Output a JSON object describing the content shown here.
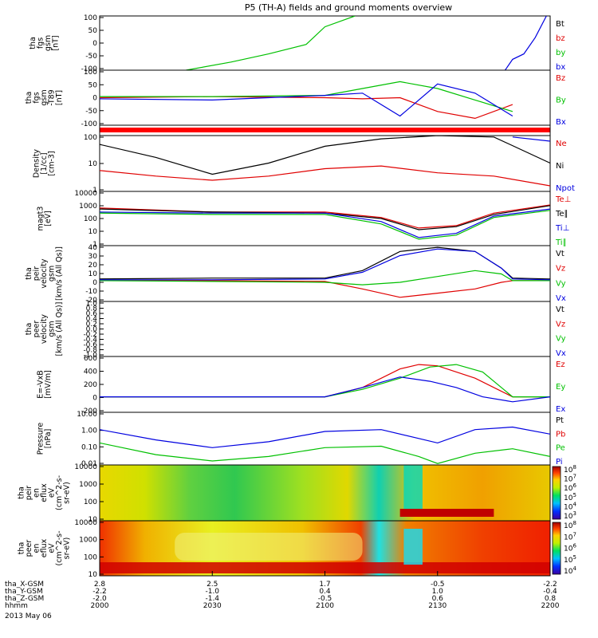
{
  "title": "P5 (TH-A) fields and ground moments overview",
  "date": "2013 May 06",
  "panels": [
    {
      "id": "fgs",
      "ylabel": [
        "tha",
        "fgs",
        "gsm",
        "[nT]"
      ],
      "yticks": [
        "100",
        "50",
        "0",
        "-50",
        "-100"
      ],
      "legend": [
        {
          "text": "Bt",
          "color": "#000000"
        },
        {
          "text": "bz",
          "color": "#e00000"
        },
        {
          "text": "by",
          "color": "#00c000"
        },
        {
          "text": "bx",
          "color": "#0000e0"
        }
      ]
    },
    {
      "id": "fgs-t89",
      "ylabel": [
        "tha",
        "fgs",
        "gsm",
        "-T89",
        "[nT]"
      ],
      "yticks": [
        "100",
        "50",
        "0",
        "-50",
        "-100"
      ],
      "legend": [
        {
          "text": "Bz",
          "color": "#e00000"
        },
        {
          "text": "By",
          "color": "#00c000"
        },
        {
          "text": "Bx",
          "color": "#0000e0"
        }
      ]
    },
    {
      "id": "mode-bar",
      "ylabel": [],
      "yticks": [],
      "legend": []
    },
    {
      "id": "density",
      "ylabel": [
        "Density",
        "[1/cc]",
        "[cm-3]"
      ],
      "yticks": [
        "100",
        "10",
        "1"
      ],
      "legend": [
        {
          "text": "Ne",
          "color": "#e00000"
        },
        {
          "text": "Ni",
          "color": "#000000"
        },
        {
          "text": "Npot",
          "color": "#0000e0"
        }
      ]
    },
    {
      "id": "temp",
      "ylabel": [
        "magt3",
        "[eV]"
      ],
      "yticks": [
        "10000",
        "1000",
        "100",
        "10",
        "1"
      ],
      "legend": [
        {
          "text": "Te⊥",
          "color": "#e00000"
        },
        {
          "text": "Te∥",
          "color": "#000000"
        },
        {
          "text": "Ti⊥",
          "color": "#0000e0"
        },
        {
          "text": "Ti∥",
          "color": "#00c000"
        }
      ]
    },
    {
      "id": "peir-vel",
      "ylabel": [
        "tha",
        "peir",
        "velocity",
        "gsm",
        "[km/s (All Qs)]"
      ],
      "yticks": [
        "40",
        "30",
        "20",
        "10",
        "0",
        "-10",
        "-20"
      ],
      "legend": [
        {
          "text": "Vt",
          "color": "#000000"
        },
        {
          "text": "Vz",
          "color": "#e00000"
        },
        {
          "text": "Vy",
          "color": "#00c000"
        },
        {
          "text": "Vx",
          "color": "#0000e0"
        }
      ]
    },
    {
      "id": "peer-vel",
      "ylabel": [
        "tha",
        "peer",
        "velocity",
        "gsm",
        "[km/s (All Qs)]"
      ],
      "yticks": [
        "1.0",
        "0.8",
        "0.6",
        "0.4",
        "0.2",
        "0.0",
        "-0.2",
        "-0.4",
        "-0.6",
        "-0.8",
        "-1.0"
      ],
      "legend": [
        {
          "text": "Vt",
          "color": "#000000"
        },
        {
          "text": "Vz",
          "color": "#e00000"
        },
        {
          "text": "Vy",
          "color": "#00c000"
        },
        {
          "text": "Vx",
          "color": "#0000e0"
        }
      ]
    },
    {
      "id": "efield",
      "ylabel": [
        "E=-VxB",
        "[mV/m]"
      ],
      "yticks": [
        "600",
        "400",
        "200",
        "0",
        "-200"
      ],
      "legend": [
        {
          "text": "Ez",
          "color": "#e00000"
        },
        {
          "text": "Ey",
          "color": "#00c000"
        },
        {
          "text": "Ex",
          "color": "#0000e0"
        }
      ]
    },
    {
      "id": "pressure",
      "ylabel": [
        "Pressure",
        "[nPa]"
      ],
      "yticks": [
        "10.00",
        "1.00",
        "0.10",
        "0.01"
      ],
      "legend": [
        {
          "text": "Pt",
          "color": "#000000"
        },
        {
          "text": "Pb",
          "color": "#e00000"
        },
        {
          "text": "Pe",
          "color": "#00c000"
        },
        {
          "text": "Pi",
          "color": "#0000e0"
        }
      ]
    },
    {
      "id": "peir-spec",
      "ylabel": [
        "tha",
        "peir",
        "en",
        "eflux",
        "eV",
        "(cm^2-s-",
        "sr-eV)"
      ],
      "yticks": [
        "10000",
        "1000",
        "100",
        "10"
      ],
      "legend": []
    },
    {
      "id": "peer-spec",
      "ylabel": [
        "tha",
        "peer",
        "en",
        "eflux",
        "eV",
        "(cm^2-s-",
        "sr-eV)"
      ],
      "yticks": [
        "10000",
        "1000",
        "100",
        "10"
      ],
      "legend": []
    }
  ],
  "colorbars": [
    {
      "ticks": [
        "10^8",
        "10^7",
        "10^6",
        "10^5",
        "10^4",
        "10^3"
      ]
    },
    {
      "ticks": [
        "10^8",
        "10^7",
        "10^6",
        "10^5",
        "10^4"
      ]
    }
  ],
  "xaxis": {
    "rows": [
      {
        "label": "tha_X-GSM",
        "values": [
          "2.8",
          "2.5",
          "1.7",
          "-0.5",
          "-2.2"
        ]
      },
      {
        "label": "tha_Y-GSM",
        "values": [
          "-2.2",
          "-1.0",
          "0.4",
          "1.0",
          "-0.4"
        ]
      },
      {
        "label": "tha_Z-GSM",
        "values": [
          "-2.0",
          "-1.4",
          "-0.5",
          "0.6",
          "0.8"
        ]
      },
      {
        "label": "hhmm",
        "values": [
          "2000",
          "2030",
          "2100",
          "2130",
          "2200"
        ]
      }
    ]
  },
  "chart_data": {
    "type": "line",
    "title": "P5 (TH-A) fields and ground moments overview",
    "x_ticks": [
      "2000",
      "2030",
      "2100",
      "2130",
      "2200"
    ],
    "x_range": [
      "2000",
      "2200"
    ],
    "panels": [
      {
        "id": "fgs",
        "ylim": [
          -100,
          100
        ],
        "series": [
          {
            "name": "by",
            "color": "#00c000",
            "x": [
              2023,
              2035,
              2045,
              2055,
              2100,
              2108
            ],
            "y": [
              -100,
              -70,
              -40,
              -5,
              60,
              100
            ]
          },
          {
            "name": "bx",
            "color": "#0000e0",
            "x": [
              2148,
              2150,
              2153,
              2156,
              2159
            ],
            "y": [
              -100,
              -60,
              -40,
              20,
              100
            ]
          }
        ]
      },
      {
        "id": "fgs-t89",
        "ylim": [
          -120,
          120
        ],
        "series": [
          {
            "name": "Bz",
            "color": "#e00000",
            "x": [
              2000,
              2030,
              2100,
              2110,
              2120,
              2130,
              2140,
              2150
            ],
            "y": [
              0,
              5,
              0,
              -5,
              0,
              -60,
              -90,
              -30
            ]
          },
          {
            "name": "By",
            "color": "#00c000",
            "x": [
              2000,
              2030,
              2100,
              2110,
              2120,
              2130,
              2140,
              2150
            ],
            "y": [
              5,
              5,
              10,
              40,
              70,
              40,
              -10,
              -60
            ]
          },
          {
            "name": "Bx",
            "color": "#0000e0",
            "x": [
              2000,
              2030,
              2100,
              2110,
              2120,
              2130,
              2140,
              2150
            ],
            "y": [
              -5,
              -10,
              10,
              20,
              -80,
              60,
              20,
              -80
            ]
          }
        ]
      },
      {
        "id": "density",
        "ylim": [
          0.3,
          300
        ],
        "yscale": "log",
        "series": [
          {
            "name": "Ni",
            "color": "#000000",
            "x": [
              2000,
              2015,
              2030,
              2045,
              2100,
              2115,
              2130,
              2145,
              2200
            ],
            "y": [
              100,
              20,
              2.5,
              10,
              80,
              200,
              300,
              250,
              10
            ]
          },
          {
            "name": "Ne",
            "color": "#e00000",
            "x": [
              2000,
              2015,
              2030,
              2045,
              2100,
              2115,
              2130,
              2145,
              2200
            ],
            "y": [
              4,
              2,
              1.2,
              2,
              5,
              7,
              3,
              2,
              0.6
            ]
          },
          {
            "name": "Npot",
            "color": "#0000e0",
            "x": [
              2150,
              2160,
              2170,
              2180,
              2190,
              2200
            ],
            "y": [
              250,
              150,
              80,
              40,
              60,
              30
            ]
          }
        ]
      },
      {
        "id": "temp",
        "ylim": [
          1,
          10000
        ],
        "yscale": "log",
        "series": [
          {
            "name": "Te⊥",
            "color": "#e00000",
            "x": [
              2000,
              2030,
              2100,
              2115,
              2125,
              2135,
              2145,
              2200
            ],
            "y": [
              600,
              300,
              300,
              120,
              20,
              30,
              250,
              1000
            ]
          },
          {
            "name": "Te∥",
            "color": "#000000",
            "x": [
              2000,
              2030,
              2100,
              2115,
              2125,
              2135,
              2145,
              2200
            ],
            "y": [
              500,
              300,
              250,
              100,
              15,
              25,
              200,
              900
            ]
          },
          {
            "name": "Ti⊥",
            "color": "#0000e0",
            "x": [
              2000,
              2030,
              2100,
              2115,
              2125,
              2135,
              2145,
              2200
            ],
            "y": [
              300,
              250,
              250,
              60,
              4,
              8,
              150,
              500
            ]
          },
          {
            "name": "Ti∥",
            "color": "#00c000",
            "x": [
              2000,
              2030,
              2100,
              2115,
              2125,
              2135,
              2145,
              2200
            ],
            "y": [
              250,
              200,
              200,
              40,
              3,
              6,
              120,
              400
            ]
          }
        ]
      },
      {
        "id": "peir-vel",
        "ylim": [
          -25,
          42
        ],
        "series": [
          {
            "name": "Vt",
            "color": "#000000",
            "x": [
              2000,
              2030,
              2100,
              2110,
              2120,
              2130,
              2140,
              2147,
              2150,
              2200
            ],
            "y": [
              2,
              3,
              3,
              12,
              35,
              40,
              35,
              15,
              3,
              2
            ]
          },
          {
            "name": "Vz",
            "color": "#e00000",
            "x": [
              2000,
              2030,
              2100,
              2110,
              2120,
              2130,
              2140,
              2147,
              2150,
              2200
            ],
            "y": [
              0,
              0,
              -1,
              -10,
              -20,
              -15,
              -10,
              -2,
              0,
              0
            ]
          },
          {
            "name": "Vy",
            "color": "#00c000",
            "x": [
              2000,
              2030,
              2100,
              2110,
              2120,
              2130,
              2140,
              2147,
              2150,
              2200
            ],
            "y": [
              0,
              -1,
              -2,
              -5,
              -2,
              5,
              12,
              8,
              0,
              0
            ]
          },
          {
            "name": "Vx",
            "color": "#0000e0",
            "x": [
              2000,
              2030,
              2100,
              2110,
              2120,
              2130,
              2140,
              2147,
              2150,
              2200
            ],
            "y": [
              1,
              1,
              2,
              10,
              30,
              38,
              35,
              15,
              2,
              1
            ]
          }
        ]
      },
      {
        "id": "efield",
        "ylim": [
          -250,
          650
        ],
        "series": [
          {
            "name": "Ez",
            "color": "#e00000",
            "x": [
              2000,
              2100,
              2110,
              2120,
              2125,
              2130,
              2140,
              2150,
              2200
            ],
            "y": [
              0,
              0,
              150,
              450,
              520,
              500,
              300,
              0,
              0
            ]
          },
          {
            "name": "Ey",
            "color": "#00c000",
            "x": [
              2000,
              2100,
              2110,
              2120,
              2128,
              2135,
              2142,
              2150,
              2200
            ],
            "y": [
              0,
              0,
              120,
              300,
              480,
              520,
              400,
              0,
              0
            ]
          },
          {
            "name": "Ex",
            "color": "#0000e0",
            "x": [
              2000,
              2100,
              2110,
              2120,
              2128,
              2135,
              2142,
              2150,
              2200
            ],
            "y": [
              0,
              0,
              150,
              320,
              250,
              150,
              0,
              -80,
              0
            ]
          }
        ]
      },
      {
        "id": "pressure",
        "ylim": [
          0.008,
          30
        ],
        "yscale": "log",
        "series": [
          {
            "name": "Pi",
            "color": "#0000e0",
            "x": [
              2000,
              2015,
              2030,
              2045,
              2100,
              2115,
              2125,
              2130,
              2140,
              2150,
              2200
            ],
            "y": [
              2,
              0.4,
              0.12,
              0.3,
              1.5,
              2,
              0.5,
              0.25,
              2,
              3,
              1
            ]
          },
          {
            "name": "Pe",
            "color": "#00c000",
            "x": [
              2000,
              2015,
              2030,
              2045,
              2100,
              2115,
              2125,
              2130,
              2140,
              2150,
              2200
            ],
            "y": [
              0.25,
              0.04,
              0.015,
              0.03,
              0.12,
              0.15,
              0.03,
              0.01,
              0.05,
              0.1,
              0.03
            ]
          }
        ]
      }
    ]
  }
}
